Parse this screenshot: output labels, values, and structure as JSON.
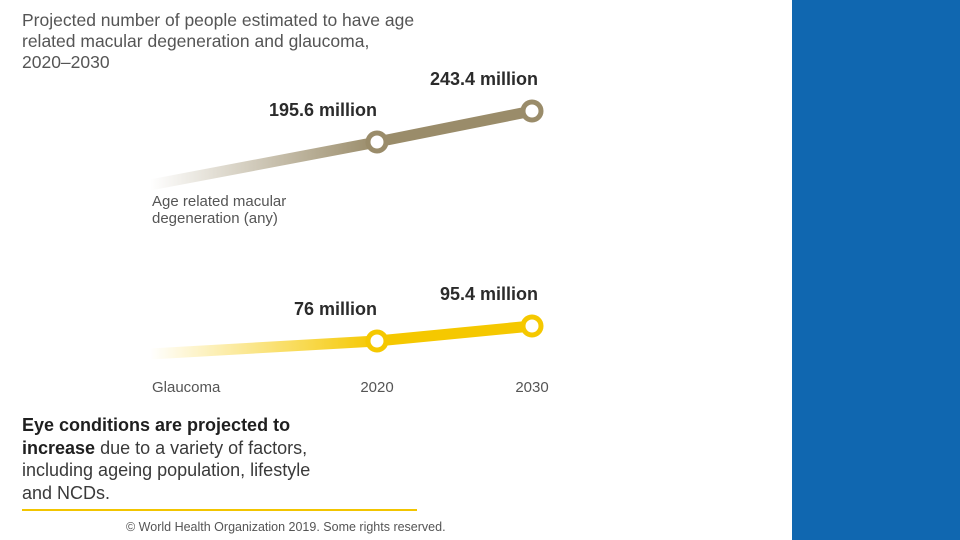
{
  "title": {
    "line1": "Projected number of people estimated to have age",
    "line2": "related macular degeneration and glaucoma,",
    "line3": "2020–2030"
  },
  "chart_data": {
    "type": "line",
    "title": "Projected number of people estimated to have age related macular degeneration and glaucoma, 2020–2030",
    "categories": [
      "2020",
      "2030"
    ],
    "series": [
      {
        "name": "Age related macular degeneration (any)",
        "label_lines": [
          "Age related macular",
          "degeneration (any)"
        ],
        "values": [
          195.6,
          243.4
        ],
        "unit": "million",
        "value_labels": [
          "195.6 million",
          "243.4 million"
        ],
        "color": "#9a8c6a"
      },
      {
        "name": "Glaucoma",
        "label_lines": [
          "Glaucoma"
        ],
        "values": [
          76,
          95.4
        ],
        "unit": "million",
        "value_labels": [
          "76 million",
          "95.4 million"
        ],
        "color": "#f5c800"
      }
    ]
  },
  "caption": {
    "bold1": "Eye conditions are projected to",
    "bold2": "increase",
    "rest1": " due to a variety of factors,",
    "line3": "including ageing population, lifestyle",
    "line4": "and NCDs."
  },
  "footer": {
    "copyright": "© World Health Organization 2019. Some rights reserved."
  },
  "colors": {
    "panel": "#1067b0",
    "accent_rule": "#f2c500"
  }
}
